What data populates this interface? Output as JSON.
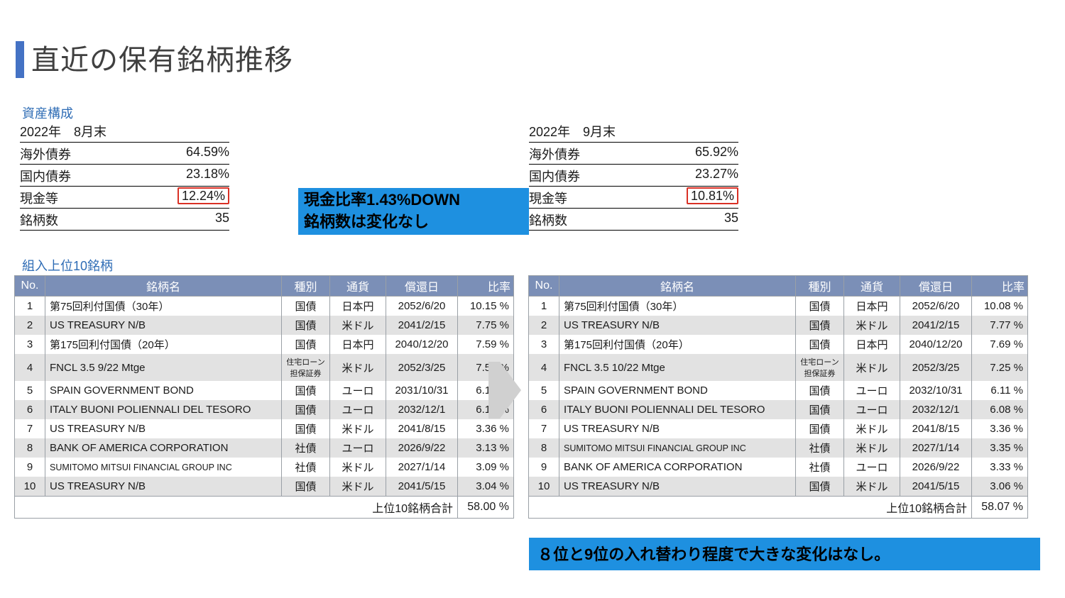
{
  "title": "直近の保有銘柄推移",
  "colors": {
    "accent": "#4472c4",
    "link_blue": "#2e6cb5",
    "th_bg": "#7b8fb7",
    "th_fg": "#ffffff",
    "row_even": "#e2e2e2",
    "row_odd": "#ffffff",
    "callout_bg": "#1e90e0",
    "redbox": "#d93025",
    "arrow": "#d0d0d0"
  },
  "asset_section_label": "資産構成",
  "asset_left": {
    "date": "2022年　8月末",
    "rows": [
      {
        "label": "海外債券",
        "value": "64.59%"
      },
      {
        "label": "国内債券",
        "value": "23.18%"
      },
      {
        "label": "現金等",
        "value": "12.24%",
        "highlight": true
      },
      {
        "label": "銘柄数",
        "value": "35"
      }
    ]
  },
  "asset_right": {
    "date": "2022年　9月末",
    "rows": [
      {
        "label": "海外債券",
        "value": "65.92%"
      },
      {
        "label": "国内債券",
        "value": "23.27%"
      },
      {
        "label": "現金等",
        "value": "10.81%",
        "highlight": true
      },
      {
        "label": "銘柄数",
        "value": "35"
      }
    ]
  },
  "callout_top_l1": "現金比率1.43%DOWN",
  "callout_top_l2": "銘柄数は変化なし",
  "callout_bottom": "８位と9位の入れ替わり程度で大きな変化はなし。",
  "holdings_section_label": "組入上位10銘柄",
  "holdings_headers": {
    "no": "No.",
    "name": "銘柄名",
    "type": "種別",
    "ccy": "通貨",
    "date": "償還日",
    "ratio": "比率"
  },
  "holdings_total_label": "上位10銘柄合計",
  "holdings_left": {
    "rows": [
      {
        "no": "1",
        "name": "第75回利付国債（30年）",
        "type": "国債",
        "ccy": "日本円",
        "date": "2052/6/20",
        "ratio": "10.15 %"
      },
      {
        "no": "2",
        "name": "US TREASURY N/B",
        "type": "国債",
        "ccy": "米ドル",
        "date": "2041/2/15",
        "ratio": "7.75 %"
      },
      {
        "no": "3",
        "name": "第175回利付国債（20年）",
        "type": "国債",
        "ccy": "日本円",
        "date": "2040/12/20",
        "ratio": "7.59 %"
      },
      {
        "no": "4",
        "name": "FNCL 3.5 9/22 Mtge",
        "type": "住宅ローン担保証券",
        "type_small": true,
        "ccy": "米ドル",
        "date": "2052/3/25",
        "ratio": "7.57 %"
      },
      {
        "no": "5",
        "name": "SPAIN GOVERNMENT BOND",
        "type": "国債",
        "ccy": "ユーロ",
        "date": "2031/10/31",
        "ratio": "6.19 %"
      },
      {
        "no": "6",
        "name": "ITALY BUONI POLIENNALI DEL TESORO",
        "type": "国債",
        "ccy": "ユーロ",
        "date": "2032/12/1",
        "ratio": "6.13 %"
      },
      {
        "no": "7",
        "name": "US TREASURY N/B",
        "type": "国債",
        "ccy": "米ドル",
        "date": "2041/8/15",
        "ratio": "3.36 %"
      },
      {
        "no": "8",
        "name": "BANK OF AMERICA CORPORATION",
        "type": "社債",
        "ccy": "ユーロ",
        "date": "2026/9/22",
        "ratio": "3.13 %"
      },
      {
        "no": "9",
        "name": "SUMITOMO MITSUI FINANCIAL GROUP INC",
        "name_small": true,
        "type": "社債",
        "ccy": "米ドル",
        "date": "2027/1/14",
        "ratio": "3.09 %"
      },
      {
        "no": "10",
        "name": "US TREASURY N/B",
        "type": "国債",
        "ccy": "米ドル",
        "date": "2041/5/15",
        "ratio": "3.04 %"
      }
    ],
    "total": "58.00 %"
  },
  "holdings_right": {
    "rows": [
      {
        "no": "1",
        "name": "第75回利付国債（30年）",
        "type": "国債",
        "ccy": "日本円",
        "date": "2052/6/20",
        "ratio": "10.08 %"
      },
      {
        "no": "2",
        "name": "US TREASURY N/B",
        "type": "国債",
        "ccy": "米ドル",
        "date": "2041/2/15",
        "ratio": "7.77 %"
      },
      {
        "no": "3",
        "name": "第175回利付国債（20年）",
        "type": "国債",
        "ccy": "日本円",
        "date": "2040/12/20",
        "ratio": "7.69 %"
      },
      {
        "no": "4",
        "name": "FNCL 3.5 10/22 Mtge",
        "type": "住宅ローン担保証券",
        "type_small": true,
        "ccy": "米ドル",
        "date": "2052/3/25",
        "ratio": "7.25 %"
      },
      {
        "no": "5",
        "name": "SPAIN GOVERNMENT BOND",
        "type": "国債",
        "ccy": "ユーロ",
        "date": "2032/10/31",
        "ratio": "6.11 %"
      },
      {
        "no": "6",
        "name": "ITALY BUONI POLIENNALI DEL TESORO",
        "type": "国債",
        "ccy": "ユーロ",
        "date": "2032/12/1",
        "ratio": "6.08 %"
      },
      {
        "no": "7",
        "name": "US TREASURY N/B",
        "type": "国債",
        "ccy": "米ドル",
        "date": "2041/8/15",
        "ratio": "3.36 %"
      },
      {
        "no": "8",
        "name": "SUMITOMO MITSUI FINANCIAL GROUP INC",
        "name_small": true,
        "type": "社債",
        "ccy": "米ドル",
        "date": "2027/1/14",
        "ratio": "3.35 %"
      },
      {
        "no": "9",
        "name": "BANK OF AMERICA CORPORATION",
        "type": "社債",
        "ccy": "ユーロ",
        "date": "2026/9/22",
        "ratio": "3.33 %"
      },
      {
        "no": "10",
        "name": "US TREASURY N/B",
        "type": "国債",
        "ccy": "米ドル",
        "date": "2041/5/15",
        "ratio": "3.06 %"
      }
    ],
    "total": "58.07 %"
  }
}
